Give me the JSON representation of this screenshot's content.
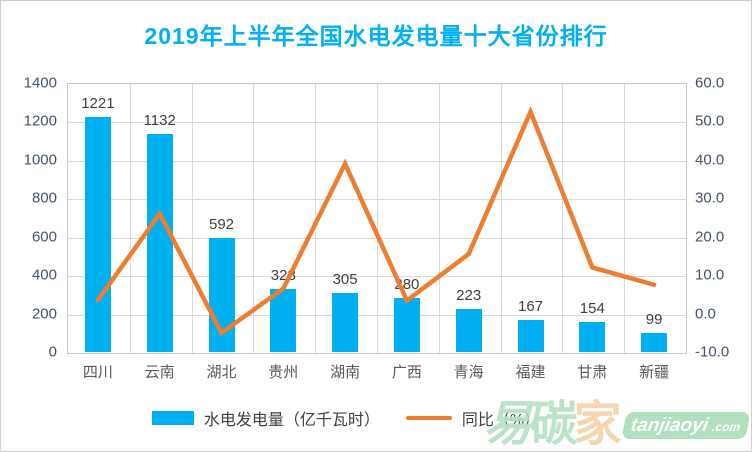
{
  "chart_data": {
    "type": "bar+line-combo",
    "title": "2019年上半年全国水电发电量十大省份排行",
    "categories": [
      "四川",
      "云南",
      "湖北",
      "贵州",
      "湖南",
      "广西",
      "青海",
      "福建",
      "甘肃",
      "新疆"
    ],
    "series": [
      {
        "name": "水电发电量（亿千瓦时）",
        "type": "bar",
        "axis": "left",
        "color": "#00B0F0",
        "values": [
          1221,
          1132,
          592,
          328,
          305,
          280,
          223,
          167,
          154,
          99
        ],
        "data_labels": [
          "1221",
          "1132",
          "592",
          "328",
          "305",
          "280",
          "223",
          "167",
          "154",
          "99"
        ]
      },
      {
        "name": "同比（%）",
        "type": "line",
        "axis": "right",
        "color": "#ED7D31",
        "values": [
          3.5,
          26.0,
          -5.0,
          6.5,
          39.0,
          3.4,
          15.5,
          52.5,
          12.0,
          7.5
        ]
      }
    ],
    "left_axis": {
      "min": 0,
      "max": 1400,
      "step": 200,
      "ticks": [
        "0",
        "200",
        "400",
        "600",
        "800",
        "1000",
        "1200",
        "1400"
      ]
    },
    "right_axis": {
      "min": -10,
      "max": 60,
      "step": 10,
      "ticks": [
        "-10.0",
        "0.0",
        "10.0",
        "20.0",
        "30.0",
        "40.0",
        "50.0",
        "60.0"
      ]
    },
    "grid": "on",
    "legend_position": "bottom"
  },
  "watermark": {
    "char1": "易",
    "char2": "碳",
    "char3": "家",
    "badge_line1": "tanjiaoyi",
    "badge_line2": ".com"
  },
  "colors": {
    "title": "#00B0F0",
    "bar": "#00B0F0",
    "line": "#ED7D31",
    "gridline": "#d9d9d9",
    "axis_text": "#44546A",
    "category_text": "#595959",
    "data_label_text": "#404040"
  }
}
